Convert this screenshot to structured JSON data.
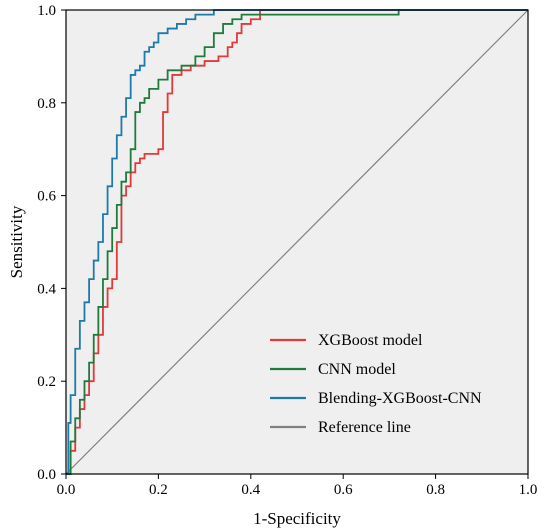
{
  "chart_data": {
    "type": "line",
    "title": "",
    "xlabel": "1-Specificity",
    "ylabel": "Sensitivity",
    "xlim": [
      0,
      1
    ],
    "ylim": [
      0,
      1
    ],
    "x_ticks": [
      "0.0",
      "0.2",
      "0.4",
      "0.6",
      "0.8",
      "1.0"
    ],
    "y_ticks": [
      "0.0",
      "0.2",
      "0.4",
      "0.6",
      "0.8",
      "1.0"
    ],
    "grid": false,
    "legend_position": "bottom-right",
    "background_color": "#efefef",
    "series": [
      {
        "name": "XGBoost model",
        "color": "#e03a3a",
        "step": true,
        "x": [
          0,
          0.01,
          0.02,
          0.03,
          0.04,
          0.05,
          0.06,
          0.07,
          0.08,
          0.09,
          0.1,
          0.11,
          0.12,
          0.13,
          0.14,
          0.15,
          0.16,
          0.17,
          0.18,
          0.2,
          0.21,
          0.22,
          0.23,
          0.25,
          0.27,
          0.3,
          0.33,
          0.35,
          0.36,
          0.37,
          0.38,
          0.4,
          0.42,
          1.0
        ],
        "y": [
          0,
          0.05,
          0.1,
          0.14,
          0.17,
          0.2,
          0.26,
          0.3,
          0.36,
          0.4,
          0.42,
          0.5,
          0.6,
          0.62,
          0.65,
          0.67,
          0.68,
          0.69,
          0.69,
          0.7,
          0.78,
          0.82,
          0.86,
          0.87,
          0.88,
          0.89,
          0.9,
          0.92,
          0.93,
          0.95,
          0.97,
          0.98,
          1.0,
          1.0
        ]
      },
      {
        "name": "CNN model",
        "color": "#1f7a3c",
        "step": true,
        "x": [
          0,
          0.01,
          0.02,
          0.03,
          0.04,
          0.05,
          0.06,
          0.07,
          0.08,
          0.09,
          0.1,
          0.11,
          0.12,
          0.13,
          0.14,
          0.15,
          0.16,
          0.17,
          0.18,
          0.2,
          0.22,
          0.25,
          0.28,
          0.3,
          0.32,
          0.34,
          0.36,
          0.38,
          0.45,
          0.55,
          0.72,
          1.0
        ],
        "y": [
          0,
          0.07,
          0.12,
          0.16,
          0.2,
          0.24,
          0.3,
          0.36,
          0.42,
          0.48,
          0.53,
          0.58,
          0.63,
          0.65,
          0.7,
          0.78,
          0.8,
          0.81,
          0.83,
          0.85,
          0.87,
          0.88,
          0.9,
          0.92,
          0.95,
          0.97,
          0.98,
          0.99,
          0.99,
          0.99,
          1.0,
          1.0
        ]
      },
      {
        "name": "Blending-XGBoost-CNN",
        "color": "#1e7aa8",
        "step": true,
        "x": [
          0,
          0.005,
          0.01,
          0.02,
          0.03,
          0.04,
          0.05,
          0.06,
          0.07,
          0.08,
          0.09,
          0.1,
          0.11,
          0.12,
          0.13,
          0.14,
          0.15,
          0.16,
          0.17,
          0.18,
          0.19,
          0.2,
          0.22,
          0.24,
          0.26,
          0.28,
          0.3,
          0.32,
          0.36,
          0.4,
          0.5,
          0.6,
          1.0
        ],
        "y": [
          0,
          0.11,
          0.17,
          0.27,
          0.33,
          0.37,
          0.42,
          0.46,
          0.5,
          0.56,
          0.62,
          0.68,
          0.73,
          0.77,
          0.81,
          0.86,
          0.87,
          0.88,
          0.91,
          0.92,
          0.93,
          0.95,
          0.96,
          0.97,
          0.98,
          0.99,
          0.99,
          1.0,
          1.0,
          1.0,
          1.0,
          1.0,
          1.0
        ]
      },
      {
        "name": "Reference line",
        "color": "#808080",
        "step": false,
        "x": [
          0,
          1
        ],
        "y": [
          0,
          1
        ]
      }
    ]
  }
}
